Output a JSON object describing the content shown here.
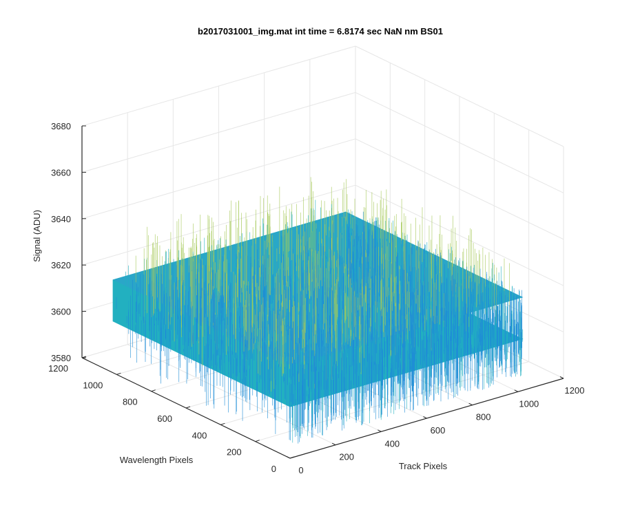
{
  "chart_data": {
    "type": "surface",
    "title": "b2017031001_img.mat int time = 6.8174 sec  NaN nm BS01",
    "xlabel": "Track Pixels",
    "ylabel": "Wavelength Pixels",
    "zlabel": "Signal (ADU)",
    "xlim": [
      0,
      1200
    ],
    "ylim": [
      0,
      1200
    ],
    "zlim": [
      3580,
      3680
    ],
    "xticks": [
      "0",
      "200",
      "400",
      "600",
      "800",
      "1000",
      "1200"
    ],
    "yticks": [
      "0",
      "200",
      "400",
      "600",
      "800",
      "1000",
      "1200"
    ],
    "zticks": [
      "3580",
      "3600",
      "3620",
      "3640",
      "3660",
      "3680"
    ],
    "data_extent": {
      "x": [
        1,
        1024
      ],
      "y": [
        1,
        1024
      ]
    },
    "signal_mean": 3612,
    "signal_spread": [
      3585,
      3645
    ],
    "colormap": "parula",
    "grid": true
  },
  "colors": {
    "surface_low": "#1f8dd6",
    "surface_mid": "#22b0c0",
    "surface_high": "#a6c95a",
    "grid": "#e6e6e6",
    "axis": "#262626"
  }
}
